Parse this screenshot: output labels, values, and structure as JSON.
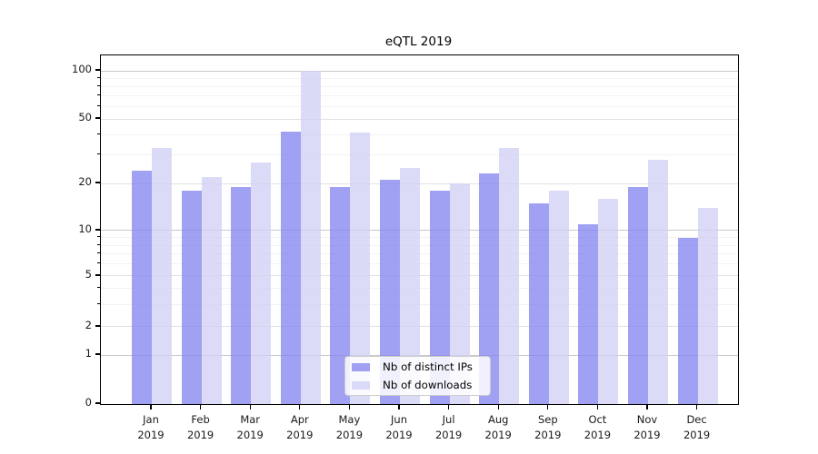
{
  "chart_data": {
    "type": "bar",
    "title": "eQTL 2019",
    "categories": [
      "Jan 2019",
      "Feb 2019",
      "Mar 2019",
      "Apr 2019",
      "May 2019",
      "Jun 2019",
      "Jul 2019",
      "Aug 2019",
      "Sep 2019",
      "Oct 2019",
      "Nov 2019",
      "Dec 2019"
    ],
    "series": [
      {
        "name": "Nb of distinct IPs",
        "values": [
          24,
          18,
          19,
          42,
          19,
          21,
          18,
          23,
          15,
          11,
          19,
          9
        ],
        "color": "rgba(134,134,240,0.78)"
      },
      {
        "name": "Nb of downloads",
        "values": [
          33,
          22,
          27,
          100,
          41,
          25,
          20,
          33,
          18,
          16,
          28,
          14
        ],
        "color": "rgba(209,209,246,0.78)"
      }
    ],
    "xlabel": "",
    "ylabel": "",
    "yscale": "symlog",
    "yticks": [
      0,
      1,
      2,
      5,
      10,
      20,
      50,
      100
    ],
    "ytick_labels": [
      "0",
      "1",
      "2",
      "5",
      "10",
      "20",
      "50",
      "100"
    ],
    "minor_grid_values": [
      3,
      4,
      6,
      7,
      8,
      9,
      30,
      40,
      60,
      70,
      80,
      90
    ],
    "ylim": [
      0,
      107
    ],
    "grid": "on",
    "legend_position": "lower center"
  },
  "colors": {
    "bar_ips": "rgba(134,134,240,0.78)",
    "bar_downloads": "rgba(209,209,246,0.78)",
    "grid_strong": "#c9c9c9",
    "grid_mid": "#e2e2e2",
    "grid_minor": "#f2f2f2",
    "spine": "#000000"
  }
}
